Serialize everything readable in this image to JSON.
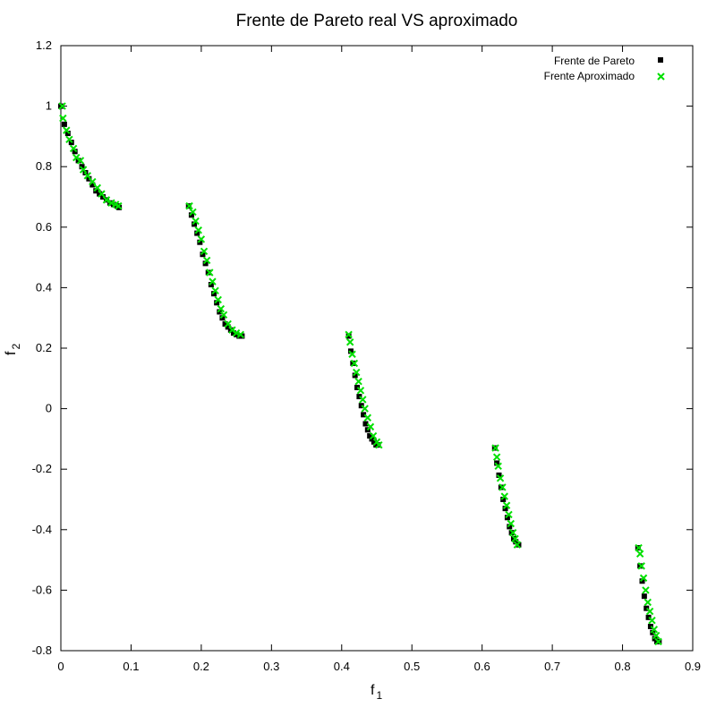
{
  "chart_data": {
    "type": "scatter",
    "title": "Frente de Pareto real VS aproximado",
    "xlabel": "f",
    "xlabel_sub": "1",
    "ylabel": "f",
    "ylabel_sub": "2",
    "xlim": [
      0,
      0.9
    ],
    "ylim": [
      -0.8,
      1.2
    ],
    "xticks": [
      0,
      0.1,
      0.2,
      0.3,
      0.4,
      0.5,
      0.6,
      0.7,
      0.8,
      0.9
    ],
    "xtick_labels": [
      "0",
      "0.1",
      "0.2",
      "0.3",
      "0.4",
      "0.5",
      "0.6",
      "0.7",
      "0.8",
      "0.9"
    ],
    "yticks": [
      -0.8,
      -0.6,
      -0.4,
      -0.2,
      0,
      0.2,
      0.4,
      0.6,
      0.8,
      1,
      1.2
    ],
    "ytick_labels": [
      "-0.8",
      "-0.6",
      "-0.4",
      "-0.2",
      "0",
      "0.2",
      "0.4",
      "0.6",
      "0.8",
      "1",
      "1.2"
    ],
    "grid": false,
    "legend_position": "top-right",
    "series": [
      {
        "name": "Frente de Pareto",
        "marker": "square",
        "color": "#000000",
        "x": [
          0.0,
          0.005,
          0.01,
          0.015,
          0.02,
          0.025,
          0.03,
          0.035,
          0.04,
          0.045,
          0.05,
          0.055,
          0.06,
          0.065,
          0.07,
          0.075,
          0.08,
          0.083,
          0.182,
          0.186,
          0.19,
          0.194,
          0.198,
          0.202,
          0.206,
          0.21,
          0.214,
          0.218,
          0.222,
          0.226,
          0.23,
          0.234,
          0.238,
          0.242,
          0.246,
          0.25,
          0.254,
          0.258,
          0.41,
          0.413,
          0.416,
          0.419,
          0.422,
          0.425,
          0.428,
          0.431,
          0.434,
          0.437,
          0.44,
          0.443,
          0.446,
          0.449,
          0.452,
          0.618,
          0.621,
          0.624,
          0.627,
          0.63,
          0.633,
          0.636,
          0.639,
          0.642,
          0.645,
          0.648,
          0.652,
          0.822,
          0.825,
          0.828,
          0.831,
          0.834,
          0.837,
          0.84,
          0.843,
          0.846,
          0.849,
          0.852
        ],
        "y": [
          1.0,
          0.94,
          0.91,
          0.88,
          0.85,
          0.82,
          0.8,
          0.78,
          0.76,
          0.74,
          0.72,
          0.71,
          0.7,
          0.69,
          0.68,
          0.675,
          0.67,
          0.665,
          0.67,
          0.64,
          0.61,
          0.58,
          0.55,
          0.51,
          0.48,
          0.45,
          0.41,
          0.38,
          0.35,
          0.32,
          0.3,
          0.28,
          0.27,
          0.26,
          0.25,
          0.245,
          0.24,
          0.24,
          0.24,
          0.19,
          0.15,
          0.11,
          0.07,
          0.04,
          0.01,
          -0.02,
          -0.05,
          -0.07,
          -0.09,
          -0.1,
          -0.11,
          -0.12,
          -0.12,
          -0.13,
          -0.18,
          -0.22,
          -0.26,
          -0.3,
          -0.33,
          -0.36,
          -0.39,
          -0.41,
          -0.43,
          -0.44,
          -0.45,
          -0.46,
          -0.52,
          -0.57,
          -0.62,
          -0.66,
          -0.69,
          -0.72,
          -0.74,
          -0.76,
          -0.77,
          -0.77
        ]
      },
      {
        "name": "Frente Aproximado",
        "marker": "x",
        "color": "#00e000",
        "x": [
          0.002,
          0.003,
          0.008,
          0.012,
          0.018,
          0.022,
          0.028,
          0.032,
          0.038,
          0.045,
          0.052,
          0.058,
          0.065,
          0.072,
          0.078,
          0.082,
          0.183,
          0.188,
          0.192,
          0.196,
          0.2,
          0.204,
          0.208,
          0.212,
          0.216,
          0.22,
          0.224,
          0.228,
          0.232,
          0.238,
          0.244,
          0.25,
          0.256,
          0.41,
          0.412,
          0.415,
          0.418,
          0.421,
          0.424,
          0.427,
          0.43,
          0.433,
          0.437,
          0.441,
          0.445,
          0.45,
          0.453,
          0.619,
          0.621,
          0.623,
          0.626,
          0.629,
          0.632,
          0.635,
          0.638,
          0.641,
          0.644,
          0.647,
          0.65,
          0.823,
          0.825,
          0.827,
          0.83,
          0.833,
          0.836,
          0.839,
          0.842,
          0.845,
          0.848,
          0.851
        ],
        "y": [
          1.0,
          0.96,
          0.92,
          0.89,
          0.86,
          0.83,
          0.82,
          0.79,
          0.77,
          0.75,
          0.73,
          0.71,
          0.69,
          0.68,
          0.675,
          0.67,
          0.67,
          0.65,
          0.62,
          0.59,
          0.56,
          0.52,
          0.49,
          0.45,
          0.42,
          0.39,
          0.36,
          0.33,
          0.31,
          0.28,
          0.26,
          0.25,
          0.245,
          0.245,
          0.22,
          0.18,
          0.15,
          0.12,
          0.09,
          0.06,
          0.03,
          0.0,
          -0.03,
          -0.06,
          -0.09,
          -0.11,
          -0.12,
          -0.13,
          -0.16,
          -0.19,
          -0.23,
          -0.26,
          -0.29,
          -0.32,
          -0.35,
          -0.38,
          -0.41,
          -0.43,
          -0.45,
          -0.46,
          -0.48,
          -0.52,
          -0.56,
          -0.6,
          -0.64,
          -0.67,
          -0.7,
          -0.73,
          -0.75,
          -0.77
        ]
      }
    ]
  }
}
